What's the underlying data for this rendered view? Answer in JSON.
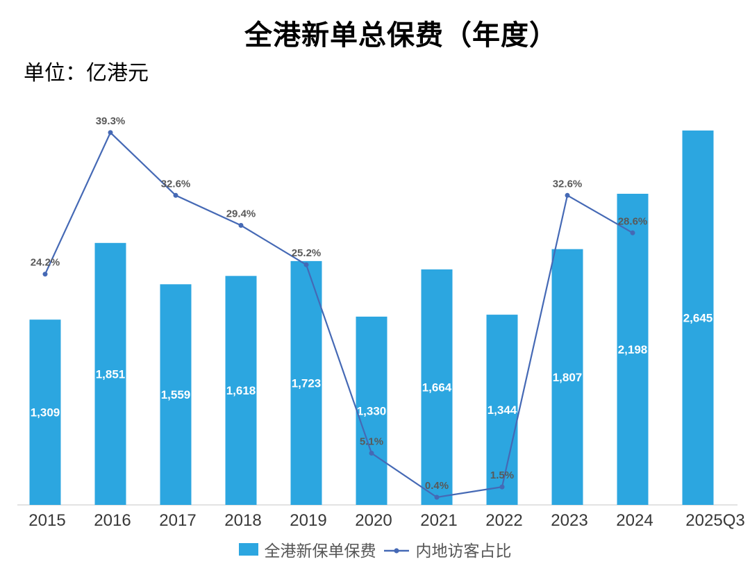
{
  "title": "全港新单总保费（年度）",
  "unit_label": "单位：亿港元",
  "legend": {
    "bar_label": "全港新保单保费",
    "line_label": "内地访客占比"
  },
  "colors": {
    "bar": "#2CA6E0",
    "line": "#4569B5",
    "bar_value_text": "#FFFFFF",
    "pct_text": "#595959",
    "axis_text": "#383838",
    "axis_line": "#D9D9D9"
  },
  "chart_data": {
    "type": "bar+line",
    "title": "全港新单总保费（年度）",
    "unit": "亿港元",
    "categories": [
      "2015",
      "2016",
      "2017",
      "2018",
      "2019",
      "2020",
      "2021",
      "2022",
      "2023",
      "2024",
      "2025Q3"
    ],
    "series": [
      {
        "name": "全港新保单保费",
        "type": "bar",
        "axis": "primary",
        "color": "#2CA6E0",
        "values": [
          1309,
          1851,
          1559,
          1618,
          1723,
          1330,
          1664,
          1344,
          1807,
          2198,
          2645
        ],
        "labels": [
          "1,309",
          "1,851",
          "1,559",
          "1,618",
          "1,723",
          "1,330",
          "1,664",
          "1,344",
          "1,807",
          "2,198",
          "2,645"
        ]
      },
      {
        "name": "内地访客占比",
        "type": "line",
        "axis": "secondary",
        "color": "#4569B5",
        "values": [
          24.2,
          39.3,
          32.6,
          29.4,
          25.2,
          5.1,
          0.4,
          1.5,
          32.6,
          28.6,
          null
        ],
        "labels": [
          "24.2%",
          "39.3%",
          "32.6%",
          "29.4%",
          "25.2%",
          "5.1%",
          "0.4%",
          "1.5%",
          "32.6%",
          "28.6%",
          null
        ]
      }
    ],
    "legend_position": "bottom",
    "gridlines": false,
    "value_axis_visible": false,
    "data_labels": "bar values centered in bars (white), line percentages above markers (gray)"
  }
}
